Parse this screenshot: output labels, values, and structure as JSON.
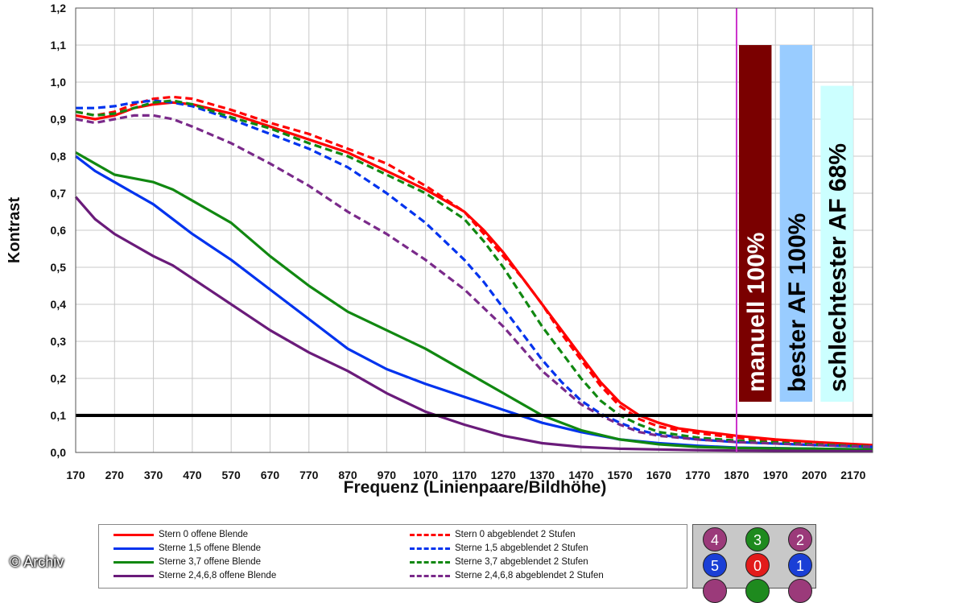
{
  "chart_data": {
    "type": "line",
    "title": "",
    "xlabel": "Frequenz (Linienpaare/Bildhöhe)",
    "ylabel": "Kontrast",
    "xlim": [
      170,
      2220
    ],
    "ylim": [
      0,
      1.2
    ],
    "x_ticks": [
      170,
      270,
      370,
      470,
      570,
      670,
      770,
      870,
      970,
      1070,
      1170,
      1270,
      1370,
      1470,
      1570,
      1670,
      1770,
      1870,
      1970,
      2070,
      2170
    ],
    "y_ticks": [
      "0,0",
      "0,1",
      "0,2",
      "0,3",
      "0,4",
      "0,5",
      "0,6",
      "0,7",
      "0,8",
      "0,9",
      "1,0",
      "1,1",
      "1,2"
    ],
    "grid": true,
    "series": [
      {
        "name": "Stern 0 offene Blende",
        "color": "#ff0000",
        "style": "solid",
        "x": [
          170,
          220,
          270,
          320,
          370,
          420,
          470,
          570,
          670,
          770,
          870,
          970,
          1070,
          1170,
          1220,
          1270,
          1320,
          1370,
          1420,
          1470,
          1520,
          1570,
          1620,
          1670,
          1720,
          1770,
          1870,
          1970,
          2070,
          2220
        ],
        "y": [
          0.91,
          0.9,
          0.91,
          0.93,
          0.94,
          0.945,
          0.94,
          0.915,
          0.88,
          0.845,
          0.81,
          0.76,
          0.71,
          0.65,
          0.6,
          0.54,
          0.47,
          0.4,
          0.33,
          0.26,
          0.19,
          0.135,
          0.1,
          0.08,
          0.065,
          0.058,
          0.045,
          0.035,
          0.028,
          0.02
        ]
      },
      {
        "name": "Sterne 1,5 offene Blende",
        "color": "#0033ee",
        "style": "solid",
        "x": [
          170,
          220,
          270,
          320,
          370,
          420,
          470,
          570,
          670,
          770,
          870,
          970,
          1070,
          1170,
          1270,
          1370,
          1470,
          1570,
          1670,
          1770,
          1870,
          2070,
          2220
        ],
        "y": [
          0.8,
          0.76,
          0.73,
          0.7,
          0.67,
          0.63,
          0.59,
          0.52,
          0.44,
          0.36,
          0.28,
          0.225,
          0.185,
          0.15,
          0.115,
          0.08,
          0.055,
          0.035,
          0.025,
          0.018,
          0.013,
          0.01,
          0.008
        ]
      },
      {
        "name": "Sterne 3,7 offene Blende",
        "color": "#118811",
        "style": "solid",
        "x": [
          170,
          220,
          270,
          320,
          370,
          420,
          470,
          570,
          670,
          770,
          870,
          970,
          1070,
          1170,
          1270,
          1370,
          1470,
          1570,
          1670,
          1770,
          1870,
          2070,
          2220
        ],
        "y": [
          0.81,
          0.78,
          0.75,
          0.74,
          0.73,
          0.71,
          0.68,
          0.62,
          0.53,
          0.45,
          0.38,
          0.33,
          0.28,
          0.22,
          0.16,
          0.1,
          0.06,
          0.035,
          0.022,
          0.015,
          0.012,
          0.01,
          0.008
        ]
      },
      {
        "name": "Sterne 2,4,6,8 offene Blende",
        "color": "#6a1b7a",
        "style": "solid",
        "x": [
          170,
          220,
          270,
          320,
          370,
          420,
          470,
          570,
          670,
          770,
          870,
          970,
          1070,
          1170,
          1270,
          1370,
          1470,
          1570,
          1670,
          1770,
          1870,
          2070,
          2220
        ],
        "y": [
          0.69,
          0.63,
          0.59,
          0.56,
          0.53,
          0.505,
          0.47,
          0.4,
          0.33,
          0.27,
          0.22,
          0.16,
          0.11,
          0.075,
          0.045,
          0.025,
          0.015,
          0.01,
          0.008,
          0.006,
          0.005,
          0.004,
          0.003
        ]
      },
      {
        "name": "Stern 0 abgeblendet 2 Stufen",
        "color": "#ff0000",
        "style": "dashed",
        "x": [
          170,
          220,
          270,
          320,
          370,
          420,
          470,
          570,
          670,
          770,
          870,
          970,
          1070,
          1170,
          1220,
          1270,
          1320,
          1370,
          1420,
          1470,
          1520,
          1570,
          1620,
          1670,
          1720,
          1770,
          1870,
          1970,
          2070,
          2220
        ],
        "y": [
          0.92,
          0.91,
          0.92,
          0.94,
          0.955,
          0.96,
          0.955,
          0.925,
          0.89,
          0.86,
          0.82,
          0.78,
          0.72,
          0.65,
          0.59,
          0.53,
          0.47,
          0.4,
          0.32,
          0.25,
          0.18,
          0.125,
          0.09,
          0.07,
          0.06,
          0.052,
          0.04,
          0.032,
          0.025,
          0.018
        ]
      },
      {
        "name": "Sterne 1,5 abgeblendet 2 Stufen",
        "color": "#0033ee",
        "style": "dashed",
        "x": [
          170,
          220,
          270,
          320,
          370,
          420,
          470,
          570,
          670,
          770,
          870,
          970,
          1070,
          1120,
          1170,
          1220,
          1270,
          1320,
          1370,
          1420,
          1470,
          1520,
          1570,
          1620,
          1670,
          1770,
          1870,
          2070,
          2220
        ],
        "y": [
          0.93,
          0.93,
          0.935,
          0.945,
          0.95,
          0.945,
          0.935,
          0.9,
          0.86,
          0.82,
          0.77,
          0.7,
          0.62,
          0.57,
          0.52,
          0.46,
          0.39,
          0.32,
          0.25,
          0.19,
          0.14,
          0.105,
          0.08,
          0.06,
          0.048,
          0.035,
          0.028,
          0.02,
          0.015
        ]
      },
      {
        "name": "Sterne 3,7 abgeblendet 2 Stufen",
        "color": "#118811",
        "style": "dashed",
        "x": [
          170,
          220,
          270,
          320,
          370,
          420,
          470,
          570,
          670,
          770,
          870,
          970,
          1070,
          1170,
          1220,
          1270,
          1320,
          1370,
          1420,
          1470,
          1520,
          1570,
          1620,
          1670,
          1770,
          1870,
          2070,
          2220
        ],
        "y": [
          0.92,
          0.91,
          0.915,
          0.93,
          0.945,
          0.95,
          0.94,
          0.905,
          0.875,
          0.835,
          0.8,
          0.75,
          0.7,
          0.63,
          0.57,
          0.5,
          0.42,
          0.34,
          0.27,
          0.2,
          0.14,
          0.1,
          0.075,
          0.055,
          0.04,
          0.032,
          0.022,
          0.016
        ]
      },
      {
        "name": "Sterne 2,4,6,8 abgeblendet 2 Stufen",
        "color": "#7a2a8a",
        "style": "dashed",
        "x": [
          170,
          220,
          270,
          320,
          370,
          420,
          470,
          570,
          670,
          770,
          870,
          970,
          1070,
          1170,
          1270,
          1370,
          1470,
          1520,
          1570,
          1620,
          1670,
          1770,
          1870,
          2070,
          2220
        ],
        "y": [
          0.9,
          0.89,
          0.9,
          0.91,
          0.91,
          0.9,
          0.88,
          0.835,
          0.78,
          0.72,
          0.65,
          0.59,
          0.52,
          0.44,
          0.34,
          0.22,
          0.13,
          0.1,
          0.075,
          0.055,
          0.045,
          0.035,
          0.028,
          0.02,
          0.015
        ]
      }
    ],
    "reference_line": {
      "y": 0.1,
      "color": "#000000"
    },
    "marker_line": {
      "x": 1870,
      "color": "#cc33cc"
    },
    "bars": [
      {
        "label": "manuell 100%",
        "value": 1.1,
        "color": "#7a0000",
        "text_color": "#ffffff",
        "from_x": 1870,
        "to_x": 1960
      },
      {
        "label": "bester AF 100%",
        "value": 1.1,
        "color": "#99ccff",
        "text_color": "#000000",
        "from_x": 1975,
        "to_x": 2065
      },
      {
        "label": "schlechtester AF 68%",
        "value": 0.99,
        "color": "#ccffff",
        "text_color": "#000000",
        "from_x": 2080,
        "to_x": 2170
      }
    ]
  },
  "legend": [
    {
      "label": "Stern 0 offene Blende",
      "color": "#ff0000",
      "style": "solid"
    },
    {
      "label": "Sterne 1,5 offene Blende",
      "color": "#0033ee",
      "style": "solid"
    },
    {
      "label": "Sterne 3,7 offene Blende",
      "color": "#118811",
      "style": "solid"
    },
    {
      "label": "Sterne 2,4,6,8 offene Blende",
      "color": "#6a1b7a",
      "style": "solid"
    },
    {
      "label": "Stern 0 abgeblendet 2 Stufen",
      "color": "#ff0000",
      "style": "dashed"
    },
    {
      "label": "Sterne 1,5 abgeblendet 2 Stufen",
      "color": "#0033ee",
      "style": "dashed"
    },
    {
      "label": "Sterne 3,7 abgeblendet 2 Stufen",
      "color": "#118811",
      "style": "dashed"
    },
    {
      "label": "Sterne 2,4,6,8 abgeblendet 2 Stufen",
      "color": "#7a2a8a",
      "style": "dashed"
    }
  ],
  "star_panel": [
    {
      "label": "4",
      "color": "#9b3a7a"
    },
    {
      "label": "3",
      "color": "#1e8a1e"
    },
    {
      "label": "2",
      "color": "#9b3a7a"
    },
    {
      "label": "5",
      "color": "#1a3fd6"
    },
    {
      "label": "0",
      "color": "#e21b1b"
    },
    {
      "label": "1",
      "color": "#1a3fd6"
    },
    {
      "label": "",
      "color": "#9b3a7a"
    },
    {
      "label": "",
      "color": "#1e8a1e"
    },
    {
      "label": "",
      "color": "#9b3a7a"
    }
  ],
  "credit": "© Archiv"
}
